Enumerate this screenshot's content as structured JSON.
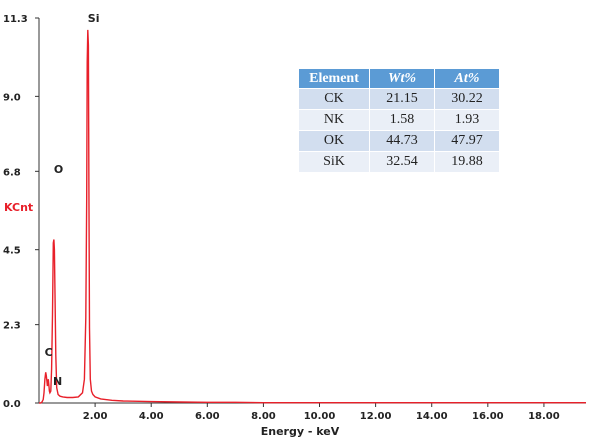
{
  "chart_data": {
    "type": "line",
    "xlabel": "Energy - keV",
    "ylabel": "KCnt",
    "xlim": [
      0,
      19.5
    ],
    "ylim": [
      0,
      11.3
    ],
    "y_ticks": [
      "0.0",
      "2.3",
      "4.5",
      "6.8",
      "9.0",
      "11.3"
    ],
    "x_ticks": [
      "2.00",
      "4.00",
      "6.00",
      "8.00",
      "10.00",
      "12.00",
      "14.00",
      "16.00",
      "18.00"
    ],
    "series": [
      {
        "color": "#e8202a",
        "x": [
          0.0,
          0.05,
          0.1,
          0.15,
          0.18,
          0.21,
          0.24,
          0.26,
          0.28,
          0.3,
          0.33,
          0.35,
          0.37,
          0.39,
          0.42,
          0.45,
          0.48,
          0.51,
          0.53,
          0.55,
          0.57,
          0.6,
          0.63,
          0.68,
          0.75,
          0.85,
          1.0,
          1.2,
          1.4,
          1.55,
          1.62,
          1.67,
          1.7,
          1.72,
          1.74,
          1.76,
          1.78,
          1.8,
          1.83,
          1.87,
          1.92,
          2.0,
          2.2,
          2.6,
          3.0,
          4.0,
          5.0,
          6.0,
          7.0,
          8.0,
          9.0,
          10.0,
          12.0,
          14.0,
          16.0,
          18.0,
          19.5
        ],
        "y": [
          0.0,
          0.0,
          0.02,
          0.1,
          0.3,
          0.7,
          0.9,
          0.8,
          0.65,
          0.5,
          0.7,
          0.55,
          0.35,
          0.3,
          0.35,
          1.0,
          2.6,
          4.7,
          4.8,
          4.5,
          3.2,
          1.4,
          0.45,
          0.25,
          0.2,
          0.18,
          0.16,
          0.16,
          0.18,
          0.3,
          0.7,
          2.5,
          6.0,
          10.0,
          10.95,
          10.5,
          6.4,
          2.2,
          0.7,
          0.35,
          0.25,
          0.18,
          0.12,
          0.08,
          0.06,
          0.04,
          0.03,
          0.02,
          0.02,
          0.01,
          0.01,
          0.01,
          0.01,
          0.01,
          0.01,
          0.01,
          0.01
        ]
      }
    ],
    "annotations": [
      {
        "text": "Si",
        "x": 1.74
      },
      {
        "text": "O",
        "x": 0.53
      },
      {
        "text": "C",
        "x": 0.27
      },
      {
        "text": "N",
        "x": 0.39
      }
    ]
  },
  "table": {
    "headers": [
      "Element",
      "Wt%",
      "At%"
    ],
    "rows": [
      [
        "CK",
        "21.15",
        "30.22"
      ],
      [
        "NK",
        "1.58",
        "1.93"
      ],
      [
        "OK",
        "44.73",
        "47.97"
      ],
      [
        "SiK",
        "32.54",
        "19.88"
      ]
    ]
  }
}
